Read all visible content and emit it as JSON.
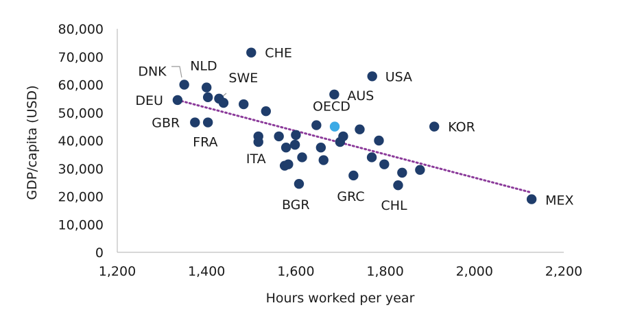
{
  "chart_data": {
    "type": "scatter",
    "title": "",
    "xlabel": "Hours worked per year",
    "ylabel": "GDP/capita (USD)",
    "xlim": [
      1200,
      2200
    ],
    "ylim": [
      0,
      80000
    ],
    "xticks": [
      1200,
      1400,
      1600,
      1800,
      2000,
      2200
    ],
    "xtick_labels": [
      "1,200",
      "1,400",
      "1,600",
      "1,800",
      "2,000",
      "2,200"
    ],
    "yticks": [
      0,
      10000,
      20000,
      30000,
      40000,
      50000,
      60000,
      70000,
      80000
    ],
    "ytick_labels": [
      "0",
      "10,000",
      "20,000",
      "30,000",
      "40,000",
      "50,000",
      "60,000",
      "70,000",
      "80,000"
    ],
    "grid": false,
    "colors": {
      "point": "#1f3d6b",
      "highlight": "#3baae6",
      "trend": "#8b3a9a",
      "axis": "#bfbfbf"
    },
    "points": [
      {
        "label": "DNK",
        "x": 1350,
        "y": 60000
      },
      {
        "label": "DEU",
        "x": 1335,
        "y": 54500
      },
      {
        "label": "NLD",
        "x": 1400,
        "y": 59000
      },
      {
        "label": "",
        "x": 1403,
        "y": 55500
      },
      {
        "label": "SWE",
        "x": 1428,
        "y": 55000
      },
      {
        "label": "",
        "x": 1438,
        "y": 53500
      },
      {
        "label": "GBR",
        "x": 1374,
        "y": 46500
      },
      {
        "label": "FRA",
        "x": 1403,
        "y": 46500
      },
      {
        "label": "",
        "x": 1483,
        "y": 53000
      },
      {
        "label": "CHE",
        "x": 1500,
        "y": 71500
      },
      {
        "label": "",
        "x": 1533,
        "y": 50500
      },
      {
        "label": "",
        "x": 1516,
        "y": 41500
      },
      {
        "label": "",
        "x": 1516,
        "y": 39500
      },
      {
        "label": "ITA",
        "x": 1562,
        "y": 41500
      },
      {
        "label": "",
        "x": 1578,
        "y": 37500
      },
      {
        "label": "",
        "x": 1575,
        "y": 31000
      },
      {
        "label": "",
        "x": 1583,
        "y": 31500
      },
      {
        "label": "",
        "x": 1598,
        "y": 38500
      },
      {
        "label": "",
        "x": 1600,
        "y": 42000
      },
      {
        "label": "",
        "x": 1614,
        "y": 34000
      },
      {
        "label": "BGR",
        "x": 1607,
        "y": 24500
      },
      {
        "label": "",
        "x": 1646,
        "y": 45500
      },
      {
        "label": "",
        "x": 1656,
        "y": 37500
      },
      {
        "label": "",
        "x": 1662,
        "y": 33000
      },
      {
        "label": "AUS",
        "x": 1686,
        "y": 56500
      },
      {
        "label": "",
        "x": 1699,
        "y": 39500
      },
      {
        "label": "",
        "x": 1706,
        "y": 41500
      },
      {
        "label": "GRC",
        "x": 1729,
        "y": 27500
      },
      {
        "label": "",
        "x": 1743,
        "y": 44000
      },
      {
        "label": "USA",
        "x": 1771,
        "y": 63000
      },
      {
        "label": "",
        "x": 1770,
        "y": 34000
      },
      {
        "label": "",
        "x": 1786,
        "y": 40000
      },
      {
        "label": "",
        "x": 1798,
        "y": 31500
      },
      {
        "label": "CHL",
        "x": 1829,
        "y": 24000
      },
      {
        "label": "",
        "x": 1838,
        "y": 28500
      },
      {
        "label": "",
        "x": 1878,
        "y": 29500
      },
      {
        "label": "KOR",
        "x": 1910,
        "y": 45000
      },
      {
        "label": "MEX",
        "x": 2128,
        "y": 19000
      },
      {
        "label": "OECD",
        "x": 1687,
        "y": 45000,
        "highlight": true
      }
    ],
    "trendline": {
      "style": "dotted",
      "x": [
        1335,
        2125
      ],
      "y": [
        54500,
        21500
      ]
    }
  }
}
